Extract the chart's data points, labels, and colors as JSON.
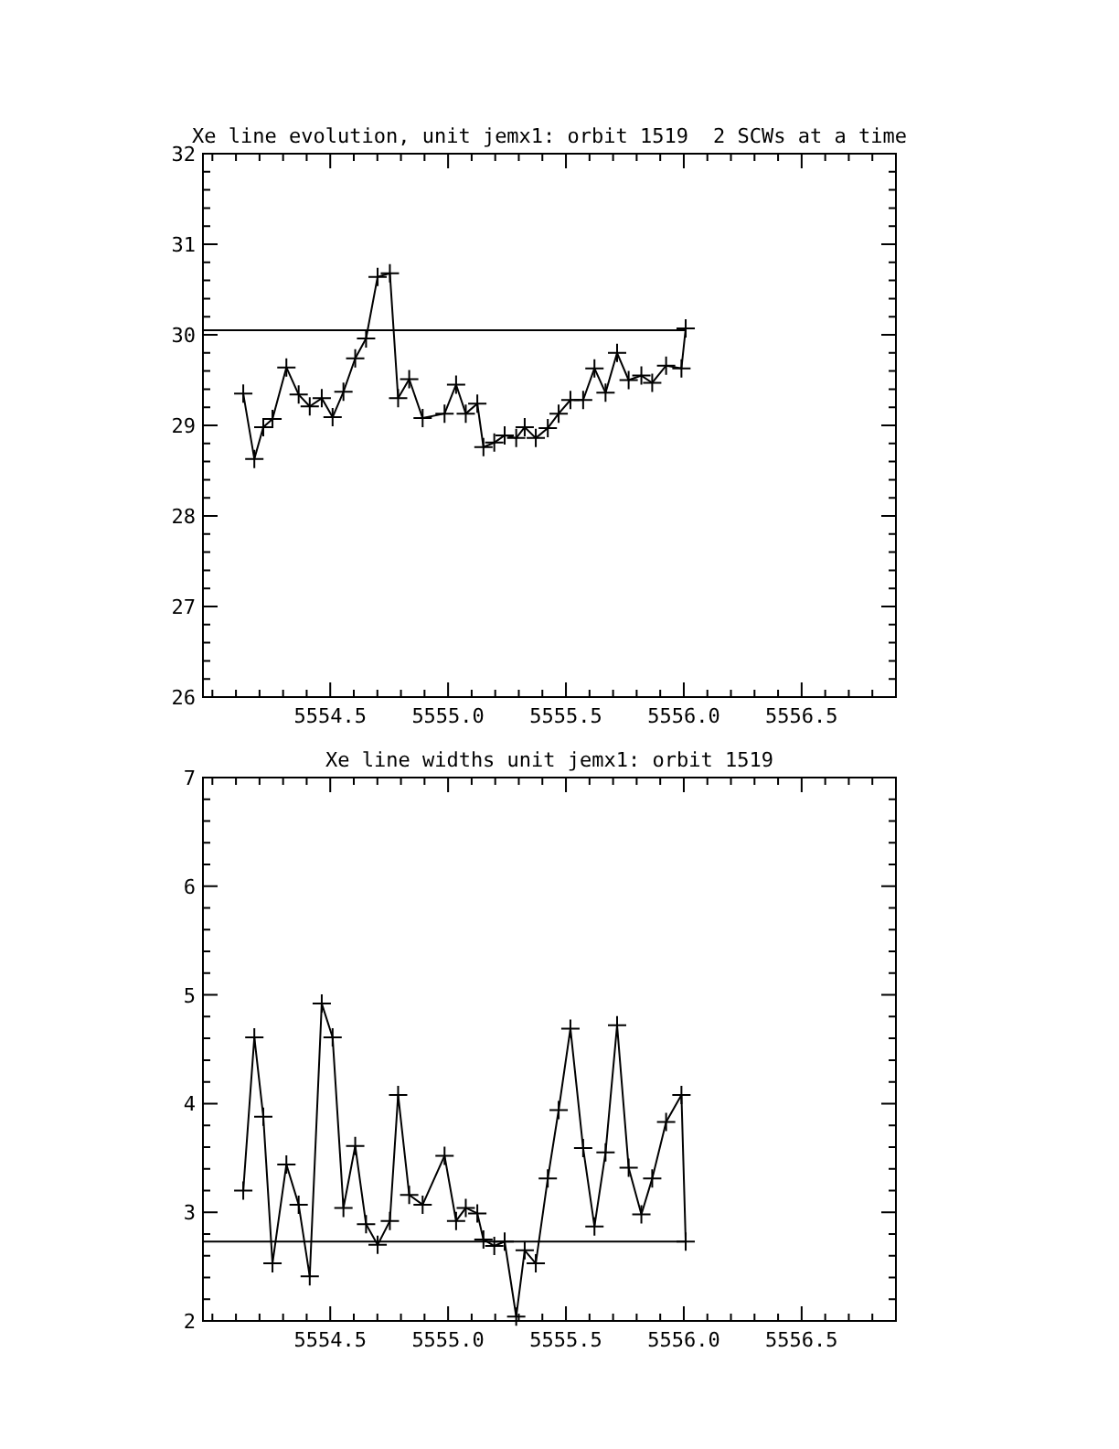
{
  "chart_data": [
    {
      "type": "line",
      "title": "Xe line evolution, unit jemx1: orbit 1519",
      "subtitle": "2 SCWs at a time",
      "xlim": [
        5553.96,
        5556.9
      ],
      "ylim": [
        26,
        32
      ],
      "xticks": [
        {
          "value": 5554.0,
          "label": null
        },
        {
          "value": 5554.1,
          "label": null
        },
        {
          "value": 5554.2,
          "label": null
        },
        {
          "value": 5554.3,
          "label": null
        },
        {
          "value": 5554.4,
          "label": null
        },
        {
          "value": 5554.5,
          "label": "5554.5"
        },
        {
          "value": 5554.6,
          "label": null
        },
        {
          "value": 5554.7,
          "label": null
        },
        {
          "value": 5554.8,
          "label": null
        },
        {
          "value": 5554.9,
          "label": null
        },
        {
          "value": 5555.0,
          "label": "5555.0"
        },
        {
          "value": 5555.1,
          "label": null
        },
        {
          "value": 5555.2,
          "label": null
        },
        {
          "value": 5555.3,
          "label": null
        },
        {
          "value": 5555.4,
          "label": null
        },
        {
          "value": 5555.5,
          "label": "5555.5"
        },
        {
          "value": 5555.6,
          "label": null
        },
        {
          "value": 5555.7,
          "label": null
        },
        {
          "value": 5555.8,
          "label": null
        },
        {
          "value": 5555.9,
          "label": null
        },
        {
          "value": 5556.0,
          "label": "5556.0"
        },
        {
          "value": 5556.1,
          "label": null
        },
        {
          "value": 5556.2,
          "label": null
        },
        {
          "value": 5556.3,
          "label": null
        },
        {
          "value": 5556.4,
          "label": null
        },
        {
          "value": 5556.5,
          "label": "5556.5"
        },
        {
          "value": 5556.6,
          "label": null
        },
        {
          "value": 5556.7,
          "label": null
        },
        {
          "value": 5556.8,
          "label": null
        }
      ],
      "yticks": [
        26,
        {
          "value": 26.2,
          "label": null
        },
        {
          "value": 26.4,
          "label": null
        },
        {
          "value": 26.6,
          "label": null
        },
        {
          "value": 26.8,
          "label": null
        },
        27,
        {
          "value": 27.2,
          "label": null
        },
        {
          "value": 27.4,
          "label": null
        },
        {
          "value": 27.6,
          "label": null
        },
        {
          "value": 27.8,
          "label": null
        },
        28,
        {
          "value": 28.2,
          "label": null
        },
        {
          "value": 28.4,
          "label": null
        },
        {
          "value": 28.6,
          "label": null
        },
        {
          "value": 28.8,
          "label": null
        },
        29,
        {
          "value": 29.2,
          "label": null
        },
        {
          "value": 29.4,
          "label": null
        },
        {
          "value": 29.6,
          "label": null
        },
        {
          "value": 29.8,
          "label": null
        },
        30,
        {
          "value": 30.2,
          "label": null
        },
        {
          "value": 30.4,
          "label": null
        },
        {
          "value": 30.6,
          "label": null
        },
        {
          "value": 30.8,
          "label": null
        },
        31,
        {
          "value": 31.2,
          "label": null
        },
        {
          "value": 31.4,
          "label": null
        },
        {
          "value": 31.6,
          "label": null
        },
        {
          "value": 31.8,
          "label": null
        },
        32
      ],
      "series": [
        {
          "color": "#000000",
          "marker": "cross",
          "x": [
            5554.131,
            5554.178,
            5554.216,
            5554.255,
            5554.314,
            5554.366,
            5554.413,
            5554.464,
            5554.51,
            5554.556,
            5554.606,
            5554.652,
            5554.701,
            5554.753,
            5554.788,
            5554.835,
            5554.892,
            5554.985,
            5555.034,
            5555.075,
            5555.124,
            5555.15,
            5555.196,
            5555.24,
            5555.289,
            5555.325,
            5555.372,
            5555.423,
            5555.469,
            5555.519,
            5555.573,
            5555.621,
            5555.668,
            5555.717,
            5555.766,
            5555.82,
            5555.866,
            5555.925,
            5555.99,
            5556.008
          ],
          "values": [
            29.35,
            28.63,
            28.98,
            29.07,
            29.64,
            29.34,
            29.21,
            29.3,
            29.09,
            29.37,
            29.74,
            29.96,
            30.64,
            30.68,
            29.3,
            29.51,
            29.08,
            29.13,
            29.45,
            29.13,
            29.24,
            28.76,
            28.81,
            28.89,
            28.86,
            28.98,
            28.86,
            28.97,
            29.13,
            29.28,
            29.28,
            29.63,
            29.36,
            29.8,
            29.5,
            29.55,
            29.47,
            29.66,
            29.63,
            30.07
          ]
        },
        {
          "color": "#000000",
          "marker": "none",
          "x": [
            5553.96,
            5556.01
          ],
          "values": [
            30.05,
            30.05
          ]
        }
      ]
    },
    {
      "type": "line",
      "title": "Xe line widths unit jemx1: orbit 1519",
      "xlim": [
        5553.96,
        5556.9
      ],
      "ylim": [
        2,
        7
      ],
      "xticks": [
        {
          "value": 5554.0,
          "label": null
        },
        {
          "value": 5554.1,
          "label": null
        },
        {
          "value": 5554.2,
          "label": null
        },
        {
          "value": 5554.3,
          "label": null
        },
        {
          "value": 5554.4,
          "label": null
        },
        {
          "value": 5554.5,
          "label": "5554.5"
        },
        {
          "value": 5554.6,
          "label": null
        },
        {
          "value": 5554.7,
          "label": null
        },
        {
          "value": 5554.8,
          "label": null
        },
        {
          "value": 5554.9,
          "label": null
        },
        {
          "value": 5555.0,
          "label": "5555.0"
        },
        {
          "value": 5555.1,
          "label": null
        },
        {
          "value": 5555.2,
          "label": null
        },
        {
          "value": 5555.3,
          "label": null
        },
        {
          "value": 5555.4,
          "label": null
        },
        {
          "value": 5555.5,
          "label": "5555.5"
        },
        {
          "value": 5555.6,
          "label": null
        },
        {
          "value": 5555.7,
          "label": null
        },
        {
          "value": 5555.8,
          "label": null
        },
        {
          "value": 5555.9,
          "label": null
        },
        {
          "value": 5556.0,
          "label": "5556.0"
        },
        {
          "value": 5556.1,
          "label": null
        },
        {
          "value": 5556.2,
          "label": null
        },
        {
          "value": 5556.3,
          "label": null
        },
        {
          "value": 5556.4,
          "label": null
        },
        {
          "value": 5556.5,
          "label": "5556.5"
        },
        {
          "value": 5556.6,
          "label": null
        },
        {
          "value": 5556.7,
          "label": null
        },
        {
          "value": 5556.8,
          "label": null
        }
      ],
      "yticks": [
        2,
        {
          "value": 2.2,
          "label": null
        },
        {
          "value": 2.4,
          "label": null
        },
        {
          "value": 2.6,
          "label": null
        },
        {
          "value": 2.8,
          "label": null
        },
        3,
        {
          "value": 3.2,
          "label": null
        },
        {
          "value": 3.4,
          "label": null
        },
        {
          "value": 3.6,
          "label": null
        },
        {
          "value": 3.8,
          "label": null
        },
        4,
        {
          "value": 4.2,
          "label": null
        },
        {
          "value": 4.4,
          "label": null
        },
        {
          "value": 4.6,
          "label": null
        },
        {
          "value": 4.8,
          "label": null
        },
        5,
        {
          "value": 5.2,
          "label": null
        },
        {
          "value": 5.4,
          "label": null
        },
        {
          "value": 5.6,
          "label": null
        },
        {
          "value": 5.8,
          "label": null
        },
        6,
        {
          "value": 6.2,
          "label": null
        },
        {
          "value": 6.4,
          "label": null
        },
        {
          "value": 6.6,
          "label": null
        },
        {
          "value": 6.8,
          "label": null
        },
        7
      ],
      "series": [
        {
          "color": "#000000",
          "marker": "cross",
          "x": [
            5554.131,
            5554.178,
            5554.216,
            5554.255,
            5554.314,
            5554.366,
            5554.413,
            5554.464,
            5554.51,
            5554.556,
            5554.606,
            5554.652,
            5554.701,
            5554.753,
            5554.788,
            5554.835,
            5554.892,
            5554.985,
            5555.034,
            5555.075,
            5555.124,
            5555.15,
            5555.196,
            5555.24,
            5555.289,
            5555.325,
            5555.372,
            5555.423,
            5555.469,
            5555.519,
            5555.573,
            5555.621,
            5555.668,
            5555.717,
            5555.766,
            5555.82,
            5555.866,
            5555.925,
            5555.99,
            5556.008
          ],
          "values": [
            3.2,
            4.61,
            3.88,
            2.53,
            3.44,
            3.07,
            2.41,
            4.92,
            4.61,
            3.04,
            3.61,
            2.89,
            2.7,
            2.92,
            4.08,
            3.16,
            3.07,
            3.52,
            2.92,
            3.04,
            2.99,
            2.75,
            2.69,
            2.73,
            2.04,
            2.65,
            2.53,
            3.31,
            3.94,
            4.69,
            3.59,
            2.87,
            3.55,
            4.72,
            3.41,
            2.98,
            3.31,
            3.83,
            4.08,
            2.73
          ]
        },
        {
          "color": "#000000",
          "marker": "none",
          "x": [
            5553.96,
            5556.01
          ],
          "values": [
            2.73,
            2.73
          ]
        }
      ]
    }
  ]
}
